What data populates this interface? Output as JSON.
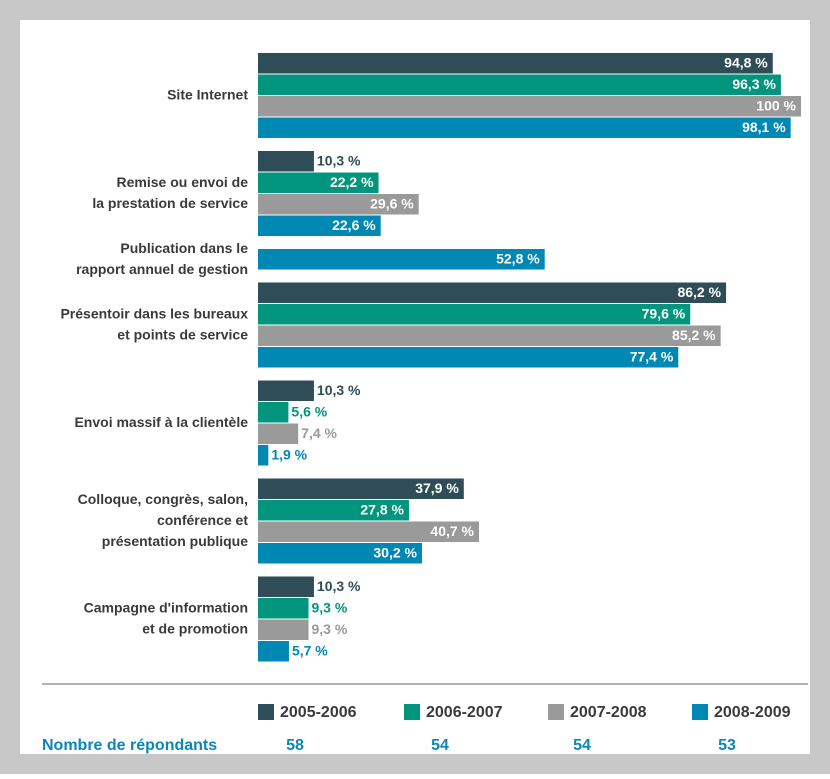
{
  "chart_data": {
    "type": "hbar",
    "orientation": "horizontal",
    "categories": [
      [
        "Site Internet"
      ],
      [
        "Remise ou envoi de",
        "la prestation de service"
      ],
      [
        "Publication dans le",
        "rapport annuel de gestion"
      ],
      [
        "Présentoir dans les bureaux",
        "et points de service"
      ],
      [
        "Envoi massif à la clientèle"
      ],
      [
        "Colloque, congrès, salon,",
        "conférence et",
        "présentation publique"
      ],
      [
        "Campagne d'information",
        "et de promotion"
      ]
    ],
    "xlim": [
      0,
      100
    ],
    "series": [
      {
        "name": "2005-2006",
        "color": "#2e4d57",
        "values": [
          94.8,
          10.3,
          null,
          86.2,
          10.3,
          37.9,
          10.3
        ],
        "value_labels": [
          "94,8 %",
          "10,3 %",
          null,
          "86,2 %",
          "10,3 %",
          "37,9 %",
          "10,3 %"
        ]
      },
      {
        "name": "2006-2007",
        "color": "#00957c",
        "values": [
          96.3,
          22.2,
          null,
          79.6,
          5.6,
          27.8,
          9.3
        ],
        "value_labels": [
          "96,3 %",
          "22,2 %",
          null,
          "79,6 %",
          "5,6 %",
          "27,8 %",
          "9,3 %"
        ]
      },
      {
        "name": "2007-2008",
        "color": "#9a9a9a",
        "values": [
          100,
          29.6,
          null,
          85.2,
          7.4,
          40.7,
          9.3
        ],
        "value_labels": [
          "100 %",
          "29,6 %",
          null,
          "85,2 %",
          "7,4 %",
          "40,7 %",
          "9,3 %"
        ]
      },
      {
        "name": "2008-2009",
        "color": "#0088b4",
        "values": [
          98.1,
          22.6,
          52.8,
          77.4,
          1.9,
          30.2,
          5.7
        ],
        "value_labels": [
          "98,1 %",
          "22,6 %",
          "52,8 %",
          "77,4 %",
          "1,9 %",
          "30,2 %",
          "5,7 %"
        ]
      }
    ],
    "respondents_label": "Nombre de répondants",
    "respondents": [
      58,
      54,
      54,
      53
    ]
  }
}
